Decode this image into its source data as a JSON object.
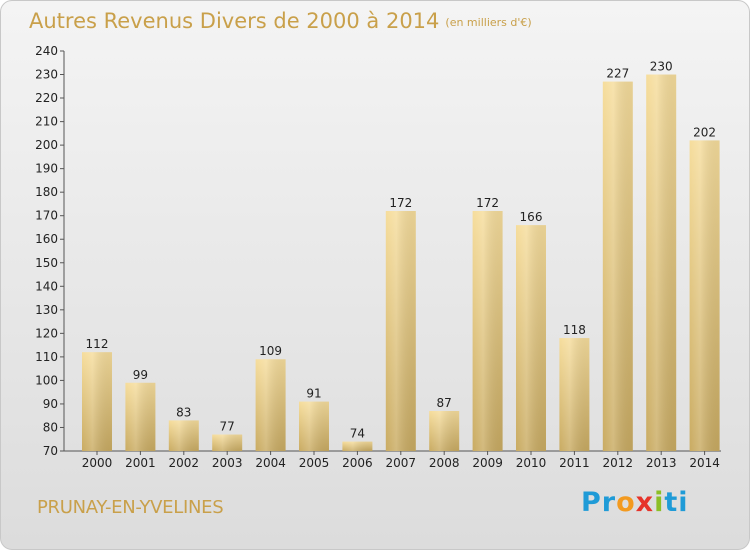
{
  "chart_data": {
    "type": "bar",
    "title": "Autres Revenus Divers de 2000 à 2014",
    "unit_label": "(en milliers d'€)",
    "categories": [
      "2000",
      "2001",
      "2002",
      "2003",
      "2004",
      "2005",
      "2006",
      "2007",
      "2008",
      "2009",
      "2010",
      "2011",
      "2012",
      "2013",
      "2014"
    ],
    "values": [
      112,
      99,
      83,
      77,
      109,
      91,
      74,
      172,
      87,
      172,
      166,
      118,
      227,
      230,
      202
    ],
    "ylim": [
      70,
      240
    ],
    "yticks": [
      70,
      80,
      90,
      100,
      110,
      120,
      130,
      140,
      150,
      160,
      170,
      180,
      190,
      200,
      210,
      220,
      230,
      240
    ],
    "grid": false,
    "bar_color": "#e6c77e"
  },
  "footer": {
    "place": "PRUNAY-EN-YVELINES",
    "logo_parts": [
      {
        "text": "Pr",
        "color": "#1f9bd7"
      },
      {
        "text": "o",
        "color": "#f39a1f"
      },
      {
        "text": "x",
        "color": "#e6332a"
      },
      {
        "text": "i",
        "color": "#8cbf26"
      },
      {
        "text": "ti",
        "color": "#1f9bd7"
      }
    ]
  }
}
